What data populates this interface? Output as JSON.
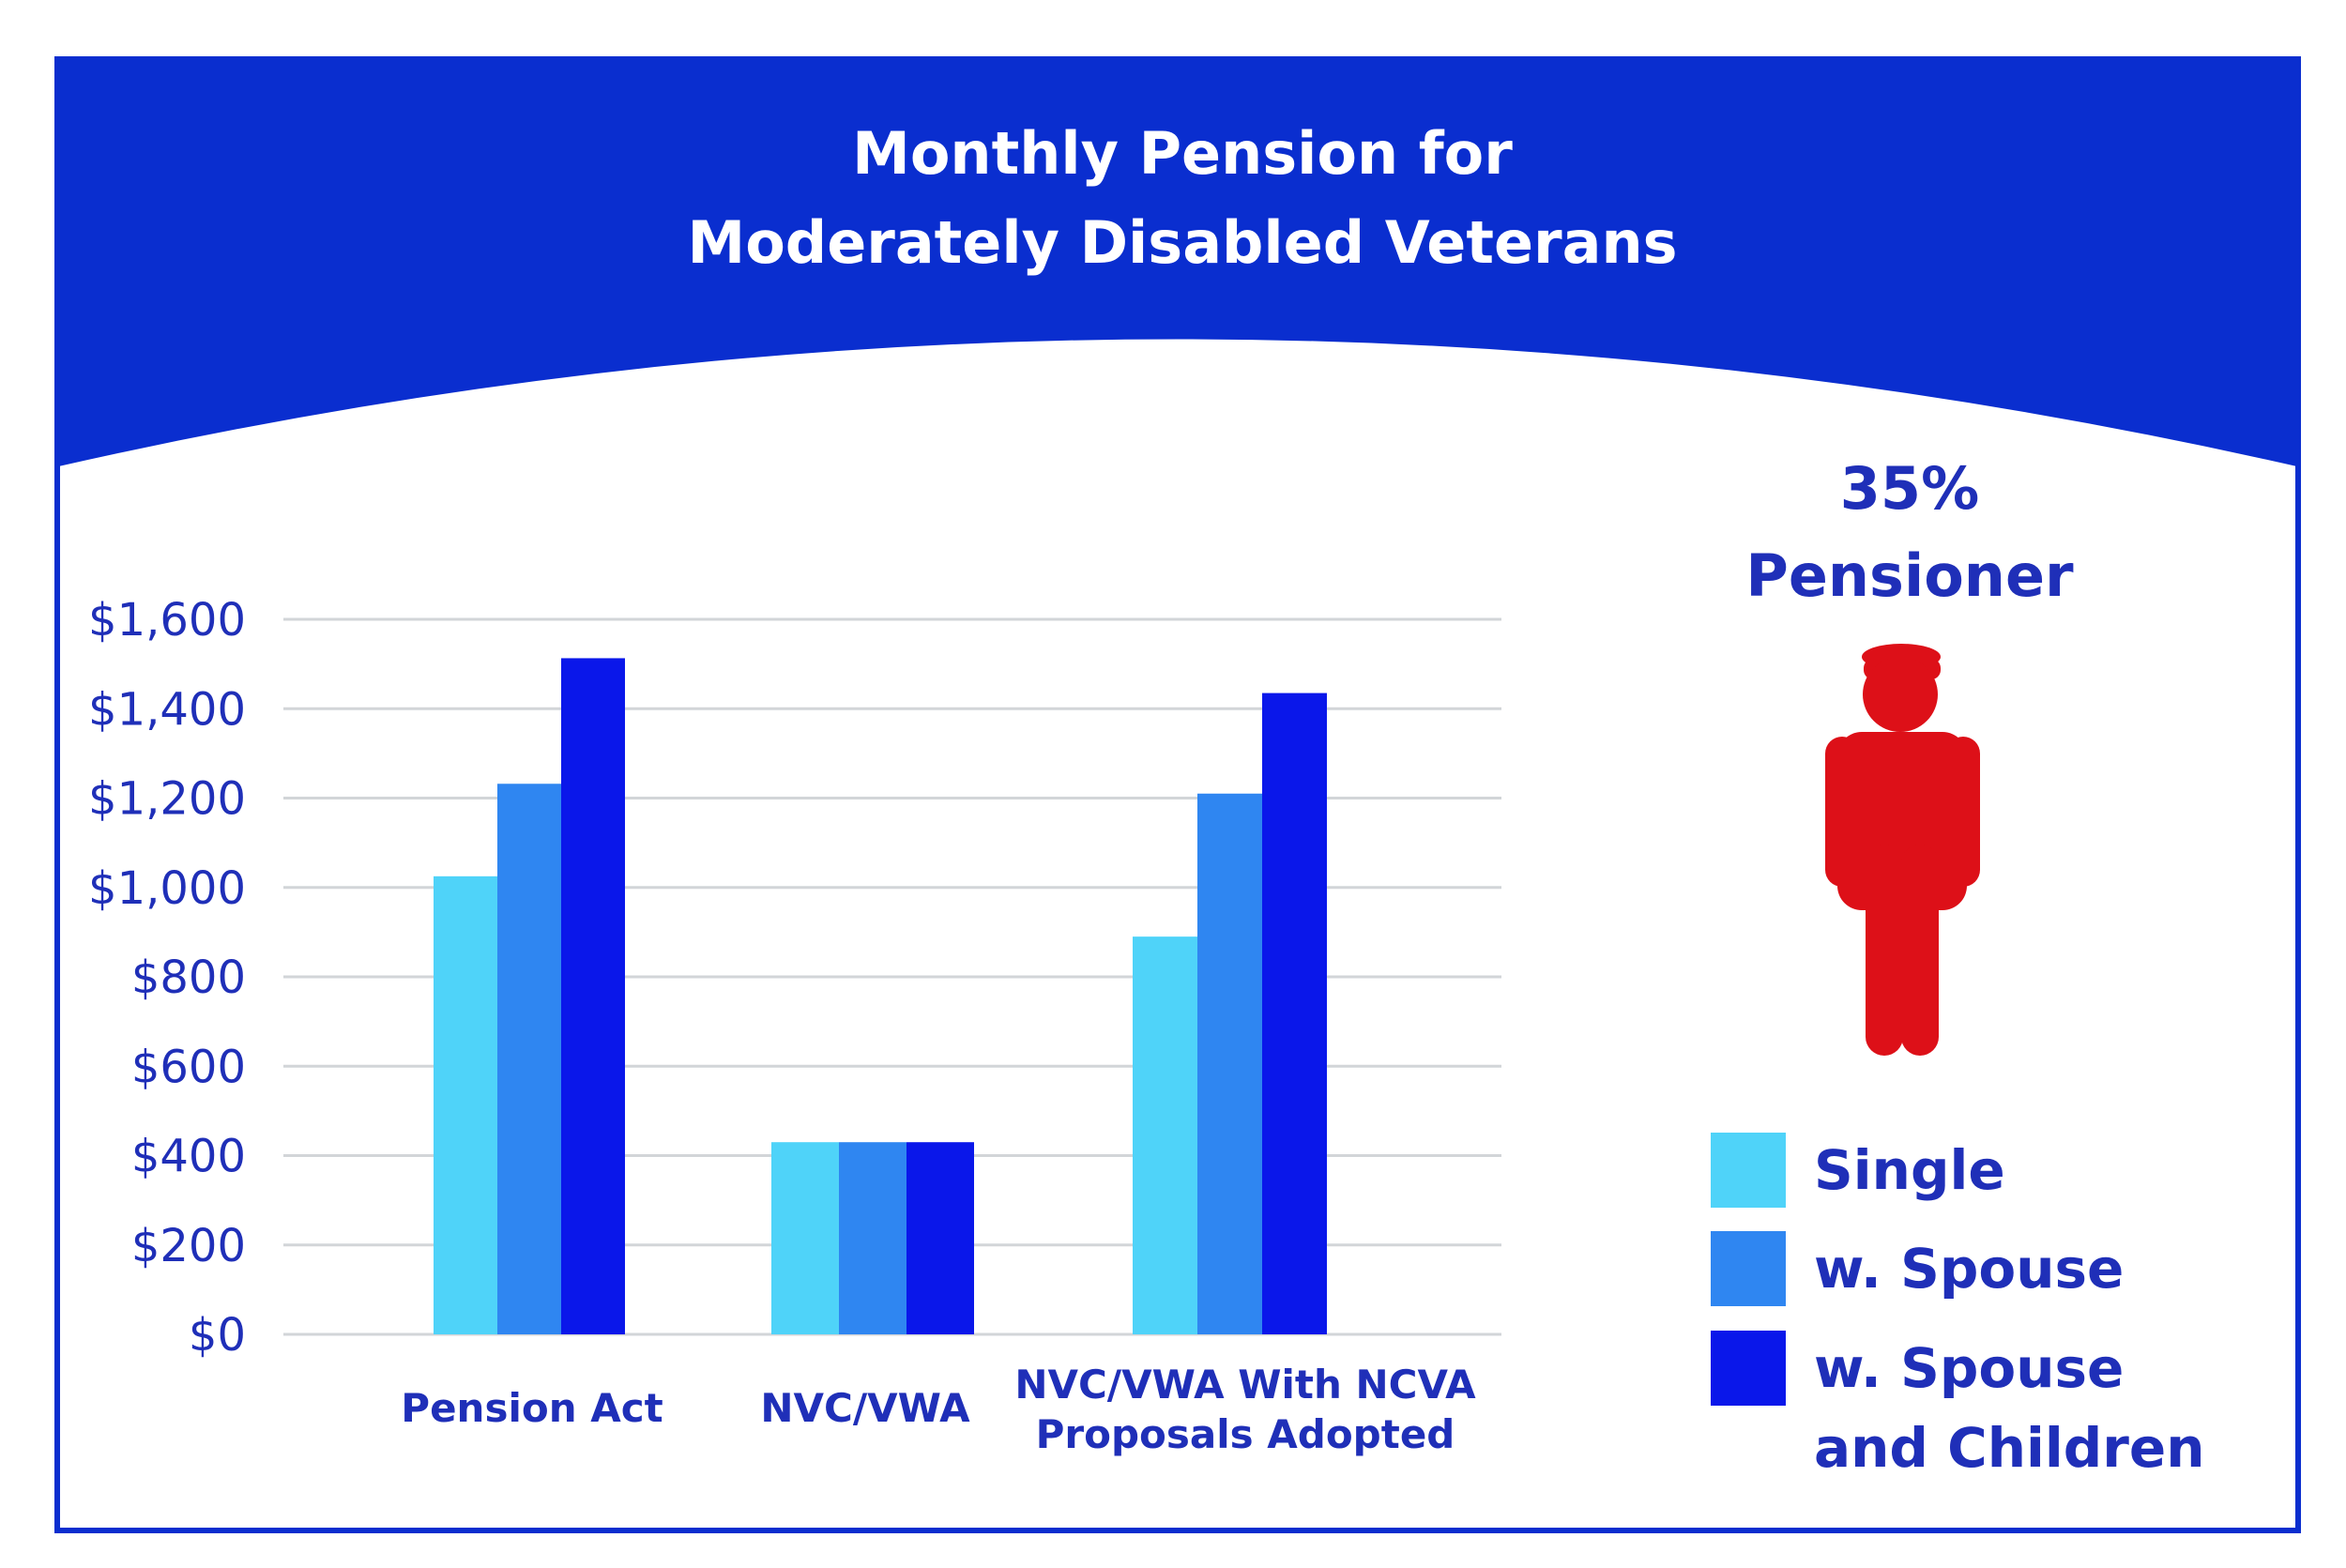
{
  "colors": {
    "frame": "#0a2ecf",
    "header": "#0a2ecf",
    "text": "#1f2fb8",
    "grid": "#d2d5d8",
    "figure": "#dd1018"
  },
  "chart_data": {
    "type": "bar",
    "title": "Monthly Pension for Moderately Disabled Veterans",
    "title_lines": [
      "Monthly Pension for",
      "Moderately Disabled Veterans"
    ],
    "xlabel": "",
    "ylabel": "",
    "ylim": [
      0,
      1600
    ],
    "yticks": [
      0,
      200,
      400,
      600,
      800,
      1000,
      1200,
      1400,
      1600
    ],
    "ytick_labels": [
      "$0",
      "$200",
      "$400",
      "$600",
      "$800",
      "$1,000",
      "$1,200",
      "$1,400",
      "$1,600"
    ],
    "grid": true,
    "categories": [
      {
        "label_lines": [
          "Pension Act"
        ]
      },
      {
        "label_lines": [
          "NVC/VWA"
        ]
      },
      {
        "label_lines": [
          "NVC/VWA With NCVA",
          "Proposals Adopted"
        ]
      }
    ],
    "series": [
      {
        "name": "Single",
        "color": "#4fd3f9",
        "values": [
          1025,
          430,
          890
        ]
      },
      {
        "name": "w. Spouse",
        "color": "#2f86f1",
        "values": [
          1232,
          430,
          1210
        ]
      },
      {
        "name": "w. Spouse and Children",
        "label_lines": [
          "w. Spouse",
          "and Children"
        ],
        "color": "#0a17ea",
        "values": [
          1513,
          430,
          1435
        ]
      }
    ],
    "legend_position": "right",
    "annotation_lines": [
      "35%",
      "Pensioner"
    ]
  }
}
